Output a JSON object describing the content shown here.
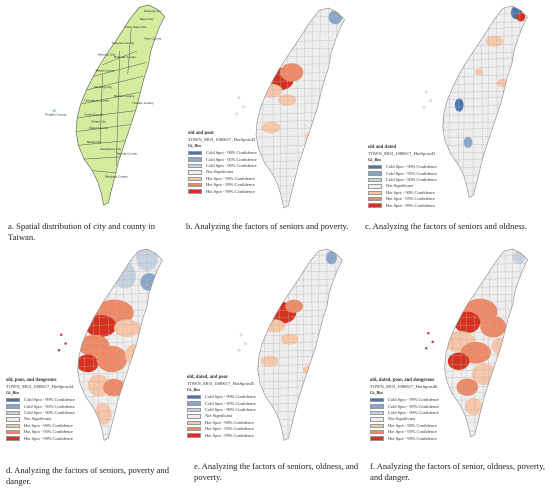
{
  "colors": {
    "cold99": "#4a74b0",
    "cold95": "#8aa6cc",
    "cold90": "#c7d3e1",
    "ns": "#eeeeee",
    "hot90": "#f7c7a8",
    "hot95": "#ef8864",
    "hot99": "#d7301f",
    "county_fill": "#d5ec9f",
    "stroke": "#9a9a9a"
  },
  "legend_labels": [
    "Cold Spot - 99% Confidence",
    "Cold Spot - 95% Confidence",
    "Cold Spot - 90% Confidence",
    "Not Significant",
    "Hot Spot - 90% Confidence",
    "Hot Spot - 95% Confidence",
    "Hot Spot - 99% Confidence"
  ],
  "legend_field": "Gi_Bin",
  "panels": [
    {
      "id": "a",
      "caption": "a. Spatial distribution of city and county in Taiwan.",
      "counties": [
        "Keelung City",
        "Taipei City",
        "New Taipei City",
        "Taoyuan County",
        "Hsinchu City",
        "Hsinchu County",
        "Miaoli County",
        "Taichung City",
        "Changhua County",
        "Nantou County",
        "Yunlin County",
        "Chiayi County",
        "Chiayi City",
        "Tainan City",
        "Kaohsiung City",
        "Pingtung County",
        "Yilan County",
        "Hualien County",
        "Taitung County",
        "Penghu County"
      ]
    },
    {
      "id": "b",
      "legend_title": "old and poor",
      "legend_subtitle": "TOWN_MOI_1080617_HotSpots42",
      "caption": "b. Analyzing the factors of seniors and poverty."
    },
    {
      "id": "c",
      "legend_title": "old and dated",
      "legend_subtitle": "TOWN_MOI_1080617_HotSpots43",
      "caption": "c. Analyzing the factors of seniors and oldness."
    },
    {
      "id": "d",
      "legend_title": "old, poor, and dangerous",
      "legend_subtitle": "TOWN_MOI_1080617_HotSpots44",
      "caption": "d. Analyzing the factors of seniors, poverty and danger."
    },
    {
      "id": "e",
      "legend_title": "old, dated, and poor",
      "legend_subtitle": "TOWN_MOI_1080617_HotSpots45",
      "caption": "e. Analyzing the factors of seniors, oldness, and poverty."
    },
    {
      "id": "f",
      "legend_title": "old, dated, poor, and dangerous",
      "legend_subtitle": "TOWN_MOI_1080617_HotSpots46",
      "caption": "f. Analyzing the factors of senior, oldness, poverty, and danger."
    }
  ]
}
